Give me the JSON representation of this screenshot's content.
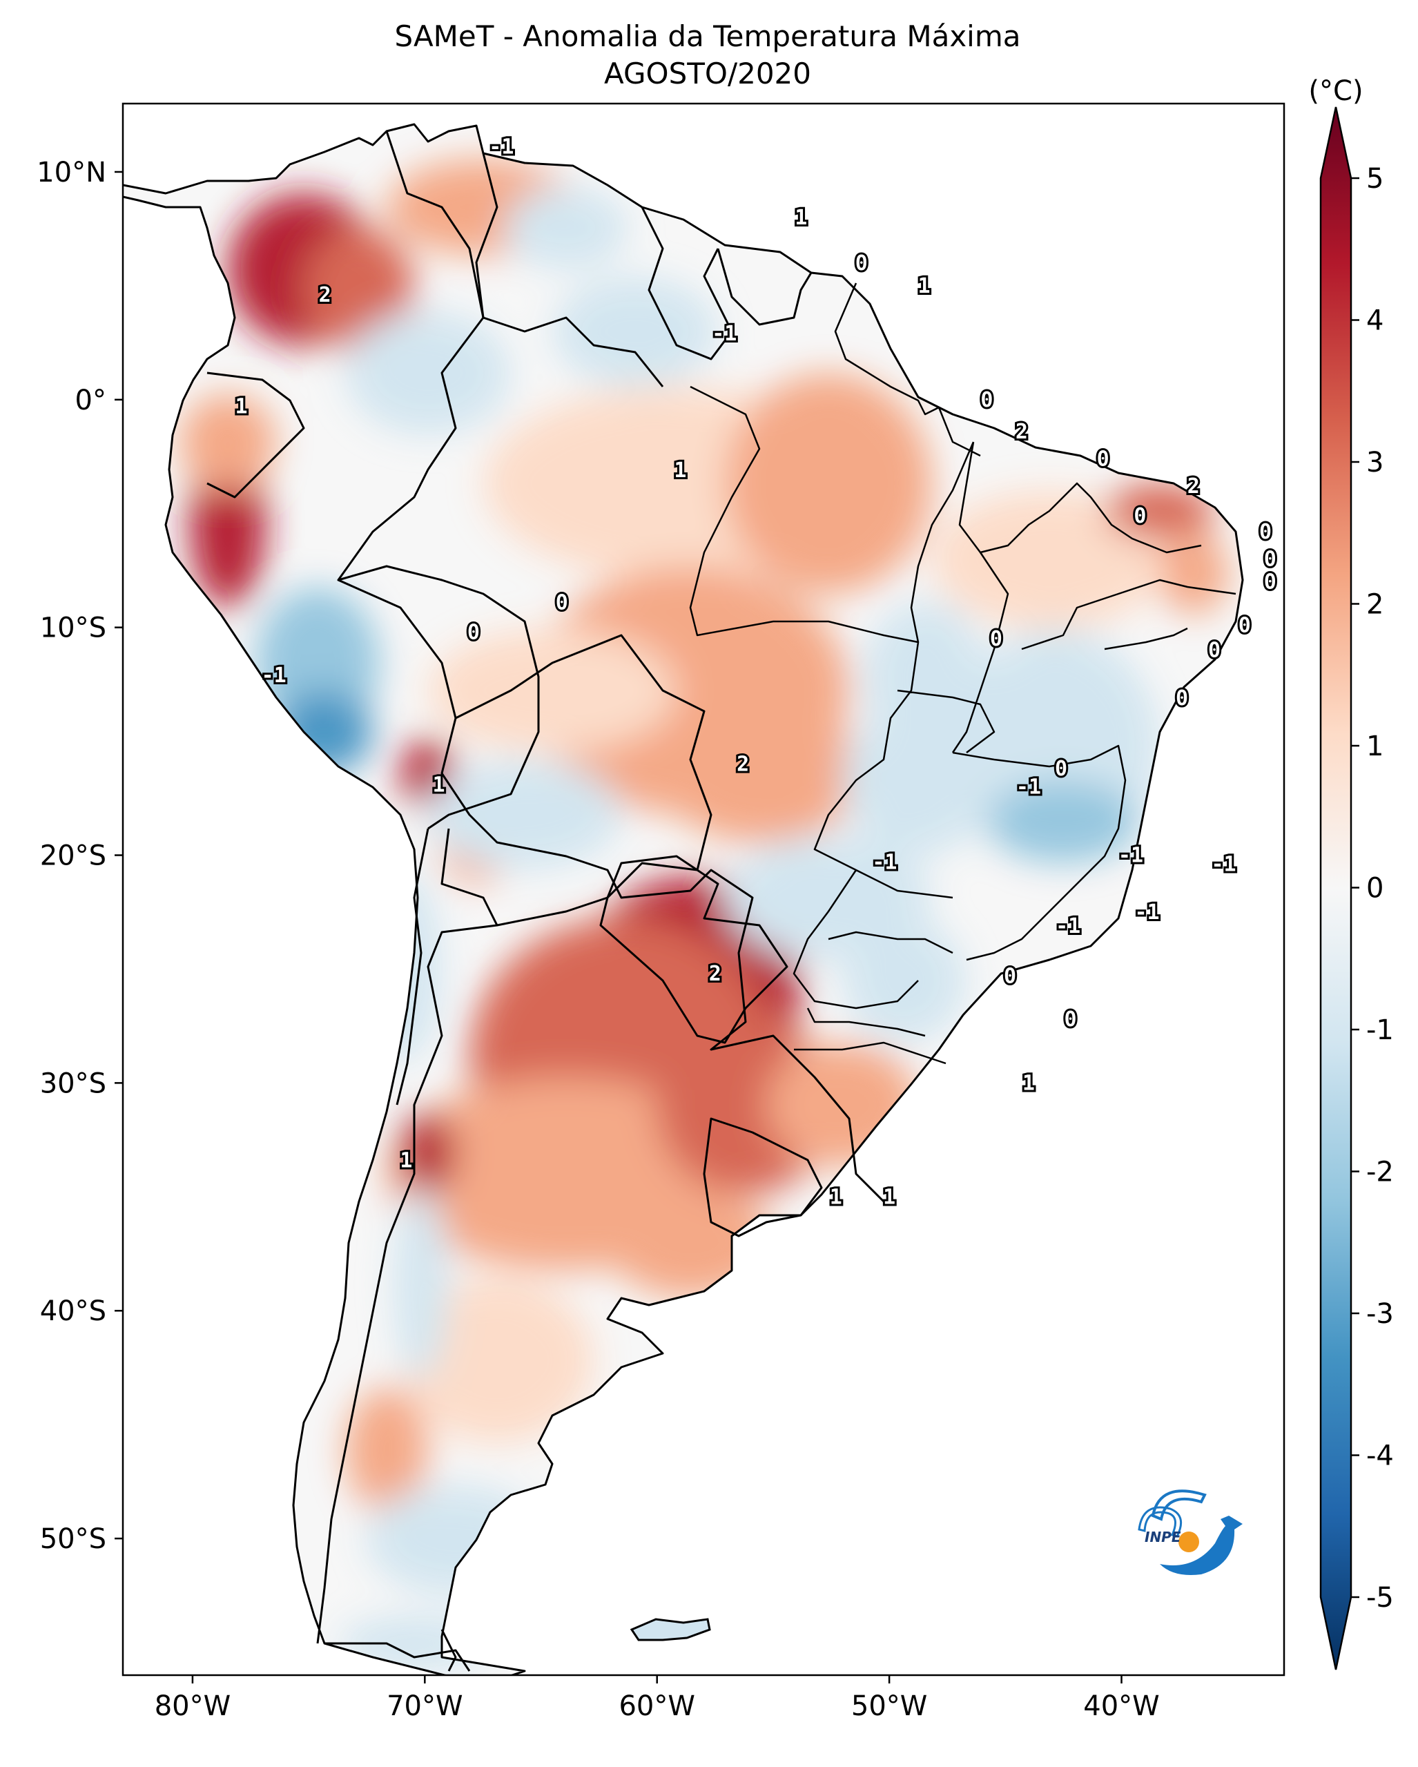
{
  "title": {
    "line1": "SAMeT - Anomalia da Temperatura Máxima",
    "line2": "AGOSTO/2020"
  },
  "map": {
    "region": "South America",
    "lon_range": [
      -83,
      -33
    ],
    "lat_range": [
      -56,
      13
    ],
    "x_ticks": [
      {
        "lon": -80,
        "label": "80°W"
      },
      {
        "lon": -70,
        "label": "70°W"
      },
      {
        "lon": -60,
        "label": "60°W"
      },
      {
        "lon": -50,
        "label": "50°W"
      },
      {
        "lon": -40,
        "label": "40°W"
      }
    ],
    "y_ticks": [
      {
        "lat": 10,
        "label": "10°N"
      },
      {
        "lat": 0,
        "label": "0°"
      },
      {
        "lat": -10,
        "label": "10°S"
      },
      {
        "lat": -20,
        "label": "20°S"
      },
      {
        "lat": -30,
        "label": "30°S"
      },
      {
        "lat": -40,
        "label": "40°S"
      },
      {
        "lat": -50,
        "label": "50°S"
      }
    ],
    "contour_labels": [
      {
        "lon": -66.7,
        "lat": 11.1,
        "text": "-1"
      },
      {
        "lon": -74.3,
        "lat": 4.6,
        "text": "2"
      },
      {
        "lon": -77.9,
        "lat": -0.3,
        "text": "1"
      },
      {
        "lon": -53.8,
        "lat": 8.0,
        "text": "1"
      },
      {
        "lon": -51.2,
        "lat": 6.0,
        "text": "0"
      },
      {
        "lon": -48.5,
        "lat": 5.0,
        "text": "1"
      },
      {
        "lon": -57.1,
        "lat": 2.9,
        "text": "-1"
      },
      {
        "lon": -45.8,
        "lat": 0.0,
        "text": "0"
      },
      {
        "lon": -44.3,
        "lat": -1.4,
        "text": "2"
      },
      {
        "lon": -40.8,
        "lat": -2.6,
        "text": "0"
      },
      {
        "lon": -59.0,
        "lat": -3.1,
        "text": "1"
      },
      {
        "lon": -36.9,
        "lat": -3.8,
        "text": "2"
      },
      {
        "lon": -39.2,
        "lat": -5.1,
        "text": "0"
      },
      {
        "lon": -33.8,
        "lat": -5.8,
        "text": "0"
      },
      {
        "lon": -33.6,
        "lat": -7.0,
        "text": "0"
      },
      {
        "lon": -33.6,
        "lat": -8.0,
        "text": "0"
      },
      {
        "lon": -64.1,
        "lat": -8.9,
        "text": "0"
      },
      {
        "lon": -67.9,
        "lat": -10.2,
        "text": "0"
      },
      {
        "lon": -45.4,
        "lat": -10.5,
        "text": "0"
      },
      {
        "lon": -34.7,
        "lat": -9.9,
        "text": "0"
      },
      {
        "lon": -36.0,
        "lat": -11.0,
        "text": "0"
      },
      {
        "lon": -37.4,
        "lat": -13.1,
        "text": "0"
      },
      {
        "lon": -76.5,
        "lat": -12.1,
        "text": "-1"
      },
      {
        "lon": -56.3,
        "lat": -16.0,
        "text": "2"
      },
      {
        "lon": -42.6,
        "lat": -16.2,
        "text": "0"
      },
      {
        "lon": -69.4,
        "lat": -16.9,
        "text": "1"
      },
      {
        "lon": -44.0,
        "lat": -17.0,
        "text": "-1"
      },
      {
        "lon": -50.2,
        "lat": -20.3,
        "text": "-1"
      },
      {
        "lon": -39.6,
        "lat": -20.0,
        "text": "-1"
      },
      {
        "lon": -35.6,
        "lat": -20.4,
        "text": "-1"
      },
      {
        "lon": -42.3,
        "lat": -23.1,
        "text": "-1"
      },
      {
        "lon": -38.9,
        "lat": -22.5,
        "text": "-1"
      },
      {
        "lon": -57.5,
        "lat": -25.2,
        "text": "2"
      },
      {
        "lon": -44.8,
        "lat": -25.3,
        "text": "0"
      },
      {
        "lon": -42.2,
        "lat": -27.2,
        "text": "0"
      },
      {
        "lon": -44.0,
        "lat": -30.0,
        "text": "1"
      },
      {
        "lon": -70.8,
        "lat": -33.4,
        "text": "1"
      },
      {
        "lon": -52.3,
        "lat": -35.0,
        "text": "1"
      },
      {
        "lon": -50.0,
        "lat": -35.0,
        "text": "1"
      }
    ]
  },
  "colorbar": {
    "unit_label": "(°C)",
    "vmin": -5,
    "vmax": 5,
    "tick_labels": [
      "5",
      "4",
      "3",
      "2",
      "1",
      "0",
      "-1",
      "-2",
      "-3",
      "-4",
      "-5"
    ],
    "colors": [
      "#67001f",
      "#b2182b",
      "#d6604d",
      "#f4a582",
      "#fddbc7",
      "#f7f7f7",
      "#d1e5f0",
      "#92c5de",
      "#4393c3",
      "#2166ac",
      "#053061"
    ]
  },
  "logo": {
    "text": "INPE"
  }
}
